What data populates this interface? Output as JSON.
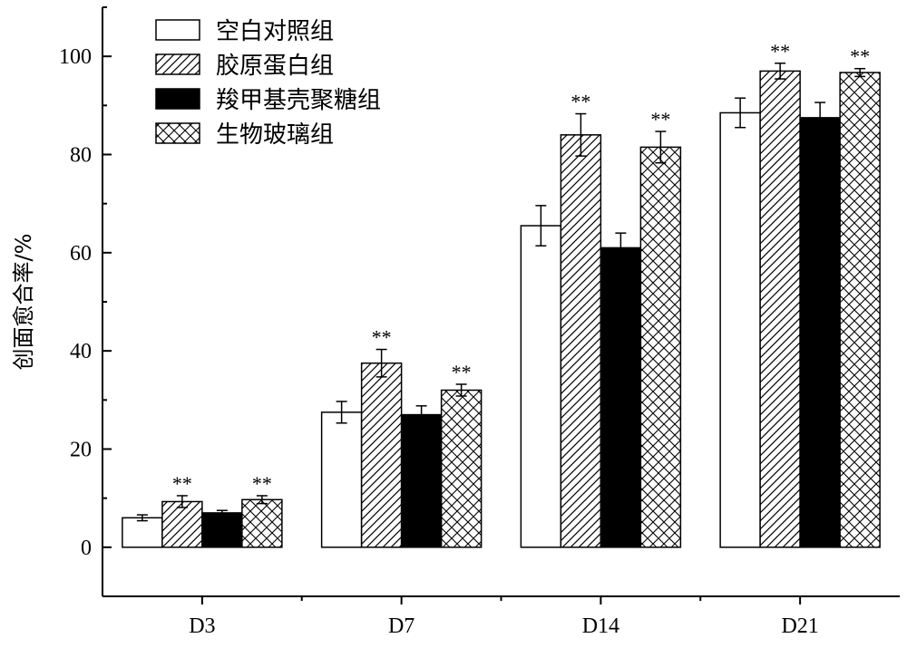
{
  "chart_data": {
    "type": "bar",
    "categories": [
      "D3",
      "D7",
      "D14",
      "D21"
    ],
    "ylabel": "创面愈合率/%",
    "xlabel": "",
    "ylim": [
      -10,
      110
    ],
    "yticks": [
      0,
      20,
      40,
      60,
      80,
      100
    ],
    "grid": false,
    "legend_position": "top-left",
    "series": [
      {
        "name": "空白对照组",
        "pattern": "none",
        "values": [
          6.0,
          27.5,
          65.5,
          88.5
        ],
        "errors": [
          0.6,
          2.2,
          4.1,
          3.0
        ],
        "significance": [
          "",
          "",
          "",
          ""
        ]
      },
      {
        "name": "胶原蛋白组",
        "pattern": "diagonal",
        "values": [
          9.3,
          37.5,
          84.0,
          97.0
        ],
        "errors": [
          1.2,
          2.8,
          4.3,
          1.6
        ],
        "significance": [
          "**",
          "**",
          "**",
          "**"
        ]
      },
      {
        "name": "羧甲基壳聚糖组",
        "pattern": "solid-black",
        "values": [
          7.0,
          27.0,
          61.0,
          87.5
        ],
        "errors": [
          0.5,
          1.8,
          3.0,
          3.1
        ],
        "significance": [
          "",
          "",
          "",
          ""
        ]
      },
      {
        "name": "生物玻璃组",
        "pattern": "crosshatch",
        "values": [
          9.7,
          32.0,
          81.5,
          96.7
        ],
        "errors": [
          0.8,
          1.2,
          3.2,
          0.8
        ],
        "significance": [
          "**",
          "**",
          "**",
          "**"
        ]
      }
    ]
  }
}
